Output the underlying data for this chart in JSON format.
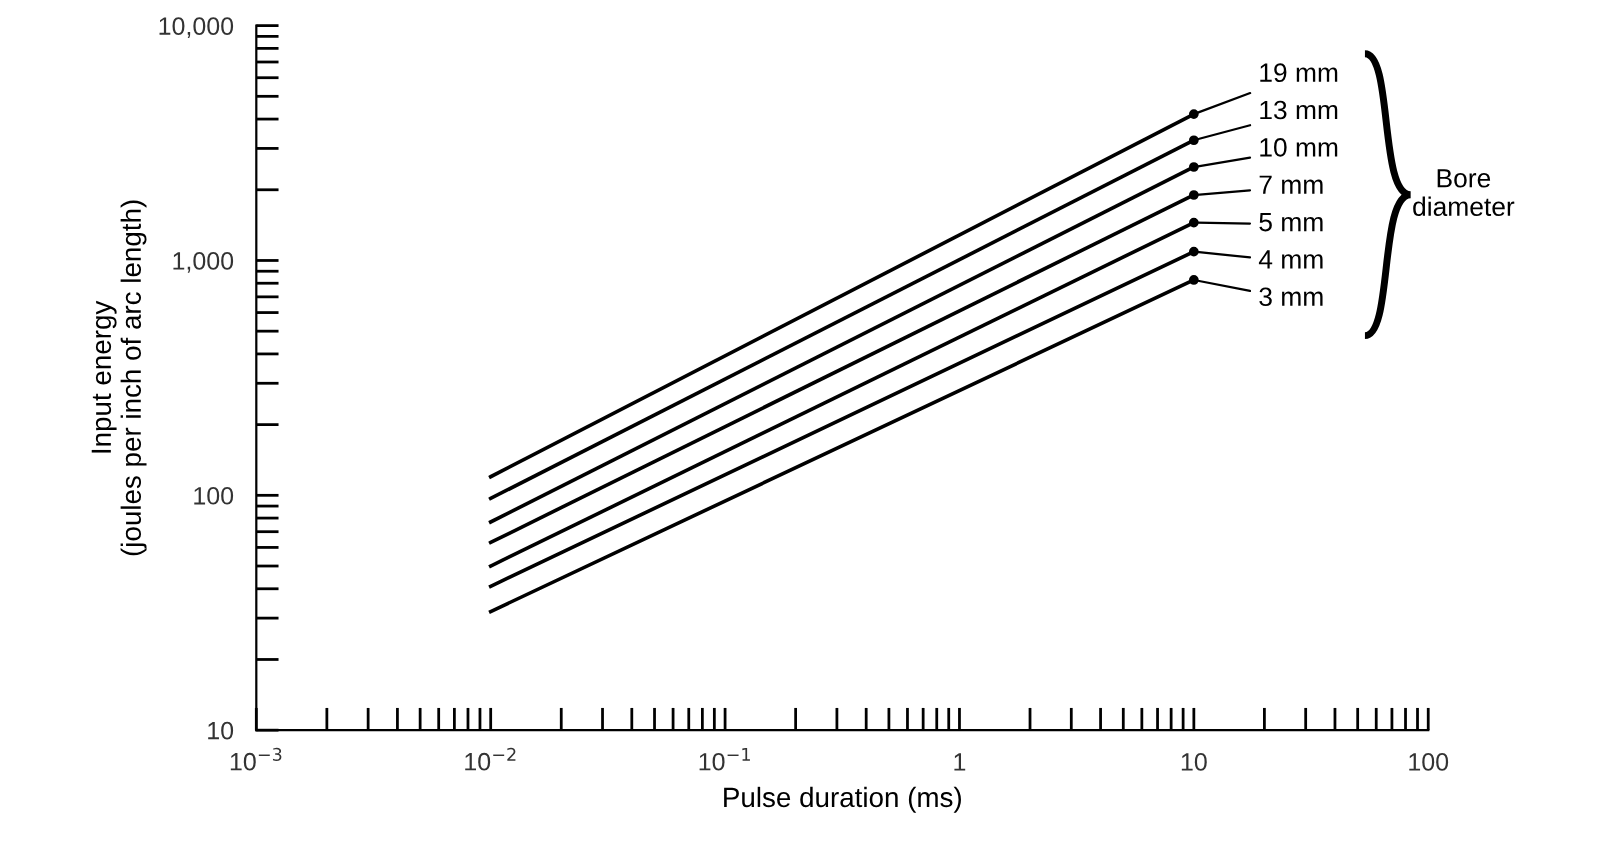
{
  "chart_data": {
    "type": "line",
    "xlabel": "Pulse duration (ms)",
    "ylabel": "Input energy\n(joules per inch of arc length)",
    "legend_title": "Bore\ndiameter",
    "x": [
      0.01,
      10
    ],
    "series": [
      {
        "name": "19 mm",
        "color": "#000000",
        "values": [
          120,
          4200
        ]
      },
      {
        "name": "13 mm",
        "color": "#000000",
        "values": [
          97,
          3250
        ]
      },
      {
        "name": "10 mm",
        "color": "#000000",
        "values": [
          77,
          2500
        ]
      },
      {
        "name": "7 mm",
        "color": "#000000",
        "values": [
          63,
          1900
        ]
      },
      {
        "name": "5 mm",
        "color": "#000000",
        "values": [
          50,
          1450
        ]
      },
      {
        "name": "4 mm",
        "color": "#000000",
        "values": [
          41,
          1090
        ]
      },
      {
        "name": "3 mm",
        "color": "#000000",
        "values": [
          32,
          826
        ]
      }
    ],
    "log": "xy",
    "xlim": [
      0.001,
      100
    ],
    "ylim": [
      10,
      10000
    ],
    "xticks": [
      {
        "value": 0.001,
        "label": "10$^{−3}$"
      },
      {
        "value": 0.01,
        "label": "10$^{−2}$"
      },
      {
        "value": 0.1,
        "label": "10$^{−1}$"
      },
      1,
      10,
      100
    ],
    "yticks": [
      10,
      100,
      {
        "value": 1000,
        "label": "1,000"
      },
      {
        "value": 10000,
        "label": "10,000"
      }
    ],
    "grid": false,
    "legend": "top right",
    "marker": "none",
    "line_style": "solid"
  }
}
